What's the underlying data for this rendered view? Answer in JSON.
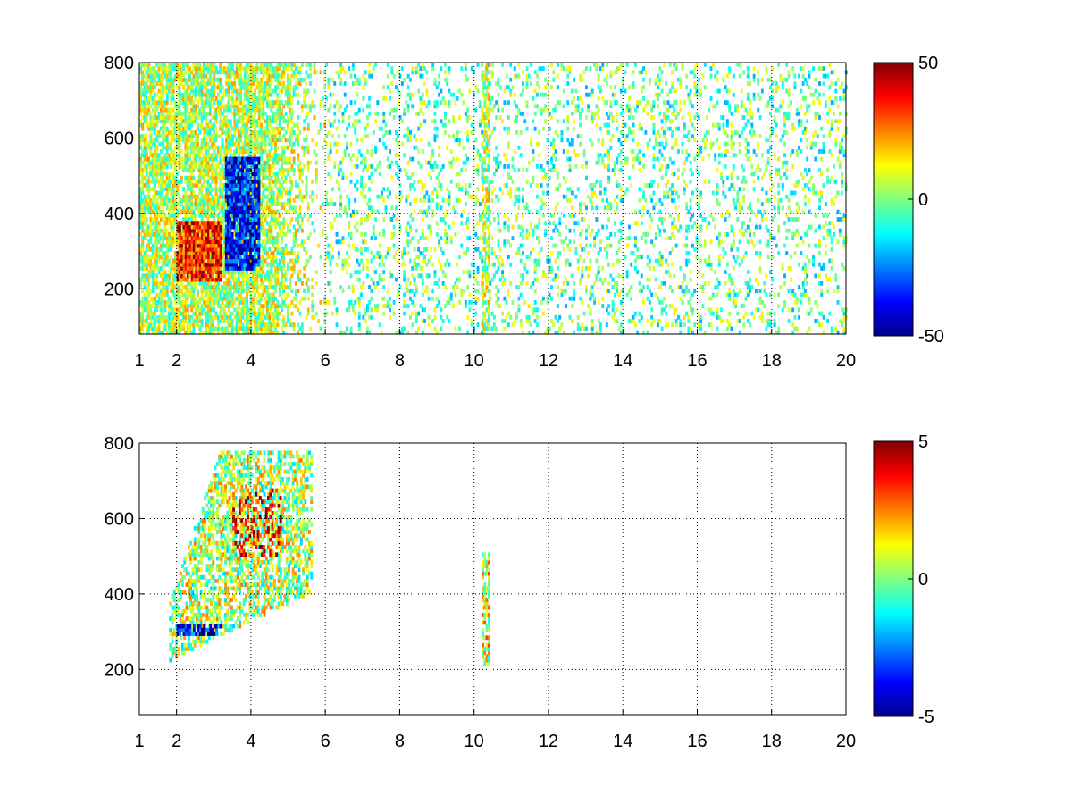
{
  "chart_data": [
    {
      "type": "heatmap",
      "title": "",
      "xlabel": "",
      "ylabel": "",
      "xlim": [
        1,
        20
      ],
      "ylim": [
        80,
        800
      ],
      "xticks": [
        1,
        2,
        4,
        6,
        8,
        10,
        12,
        14,
        16,
        18,
        20
      ],
      "yticks": [
        200,
        400,
        600,
        800
      ],
      "xtick_labels": [
        "1",
        "2",
        "4",
        "6",
        "8",
        "10",
        "12",
        "14",
        "16",
        "18",
        "20"
      ],
      "ytick_labels": [
        "200",
        "400",
        "600",
        "800"
      ],
      "grid": true,
      "colormap": "jet",
      "clim": [
        -50,
        50
      ],
      "colorbar_ticks": [
        "50",
        "0",
        "-50"
      ],
      "colorbar_tick_values": [
        50,
        0,
        -50
      ],
      "regions": [
        {
          "x": [
            1,
            6
          ],
          "y": [
            80,
            800
          ],
          "value": 5,
          "density": 0.75,
          "note": "dense mixed values at low x"
        },
        {
          "x": [
            2,
            3.2
          ],
          "y": [
            220,
            380
          ],
          "value": 35,
          "density": 0.95
        },
        {
          "x": [
            3.3,
            4.2
          ],
          "y": [
            250,
            550
          ],
          "value": -35,
          "density": 0.9
        },
        {
          "x": [
            6,
            20
          ],
          "y": [
            80,
            800
          ],
          "value": -3,
          "density": 0.18,
          "note": "sparse speckle"
        },
        {
          "x": [
            10.2,
            10.4
          ],
          "y": [
            80,
            800
          ],
          "value": 5,
          "density": 0.6
        }
      ]
    },
    {
      "type": "heatmap",
      "title": "",
      "xlabel": "",
      "ylabel": "",
      "xlim": [
        1,
        20
      ],
      "ylim": [
        80,
        800
      ],
      "xticks": [
        1,
        2,
        4,
        6,
        8,
        10,
        12,
        14,
        16,
        18,
        20
      ],
      "yticks": [
        200,
        400,
        600,
        800
      ],
      "xtick_labels": [
        "1",
        "2",
        "4",
        "6",
        "8",
        "10",
        "12",
        "14",
        "16",
        "18",
        "20"
      ],
      "ytick_labels": [
        "200",
        "400",
        "600",
        "800"
      ],
      "grid": true,
      "colormap": "jet",
      "clim": [
        -5,
        5
      ],
      "colorbar_ticks": [
        "5",
        "0",
        "-5"
      ],
      "colorbar_tick_values": [
        5,
        0,
        -5
      ],
      "regions": [
        {
          "x": [
            1.8,
            5.6
          ],
          "y": [
            220,
            780
          ],
          "value": 0.5,
          "density": 0.55,
          "note": "cone-shaped cluster, mixed values"
        },
        {
          "x": [
            2.0,
            3.2
          ],
          "y": [
            290,
            320
          ],
          "value": -4,
          "density": 0.8
        },
        {
          "x": [
            3.5,
            4.8
          ],
          "y": [
            500,
            680
          ],
          "value": 3.5,
          "density": 0.35
        },
        {
          "x": [
            10.2,
            10.4
          ],
          "y": [
            210,
            510
          ],
          "value": 1,
          "density": 0.7
        }
      ]
    }
  ]
}
